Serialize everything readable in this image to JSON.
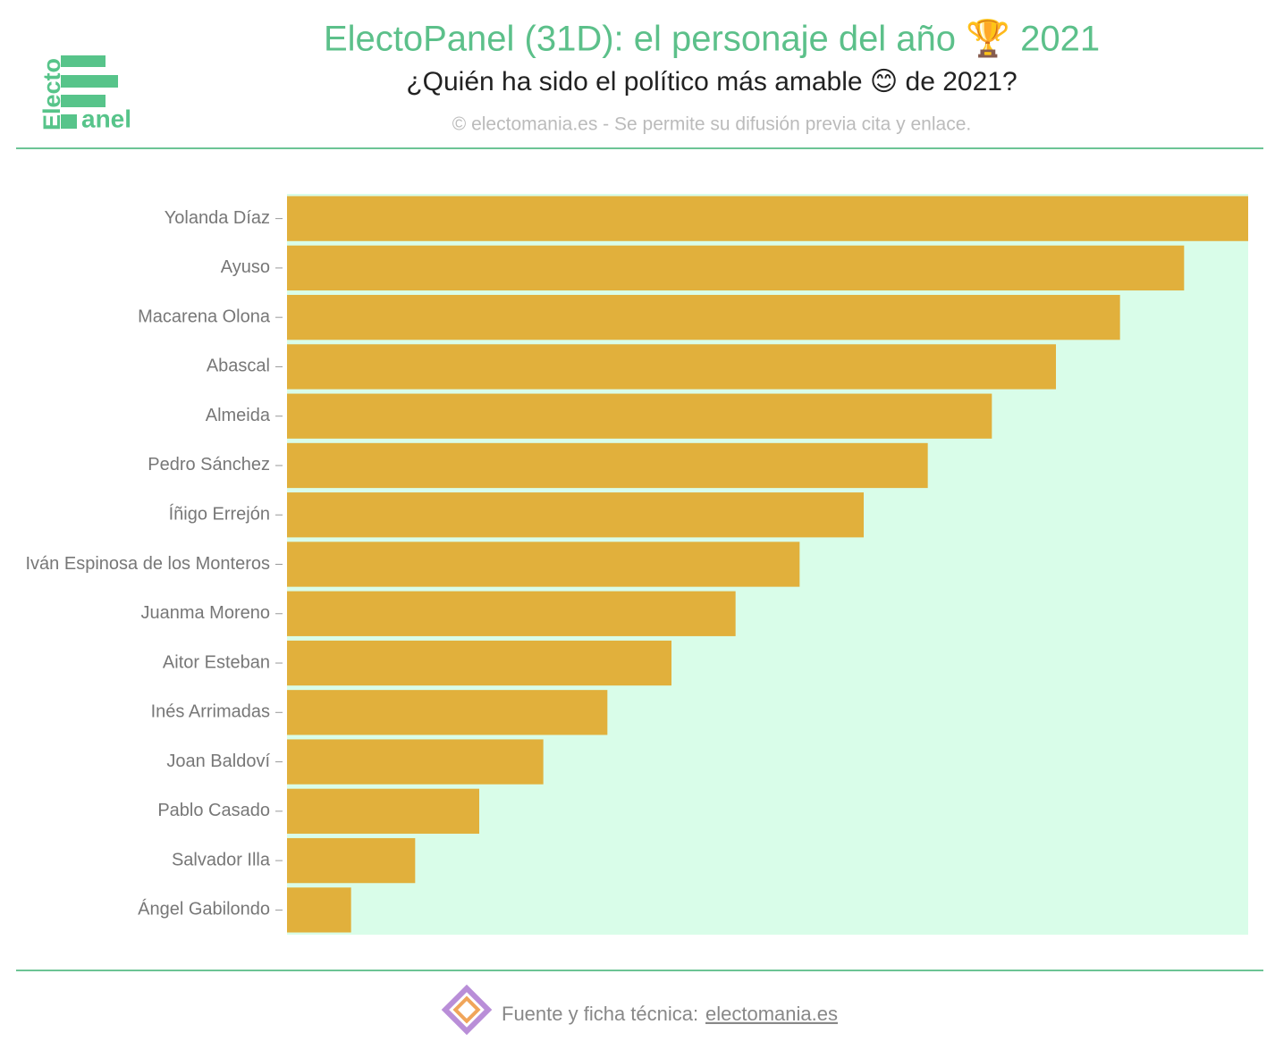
{
  "logo": {
    "top": "Electo",
    "bottom": "anel"
  },
  "chart_data": {
    "type": "bar",
    "orientation": "horizontal",
    "title": "ElectoPanel (31D): el personaje del año 🏆 2021",
    "subtitle": "¿Quién ha sido el político más amable 😊 de 2021?",
    "credit": "© electomania.es - Se permite su difusión previa cita y enlace.",
    "categories": [
      "Yolanda Díaz",
      "Ayuso",
      "Macarena Olona",
      "Abascal",
      "Almeida",
      "Pedro Sánchez",
      "Íñigo Errejón",
      "Iván Espinosa de los Monteros",
      "Juanma Moreno",
      "Aitor Esteban",
      "Inés Arrimadas",
      "Joan Baldoví",
      "Pablo Casado",
      "Salvador Illa",
      "Ángel Gabilondo"
    ],
    "values": [
      15,
      14,
      13,
      12,
      11,
      10,
      9,
      8,
      7,
      6,
      5,
      4,
      3,
      2,
      1
    ],
    "color": "#e1b03c",
    "background": "#d9fde9",
    "xlim": [
      0,
      15
    ]
  },
  "footer": {
    "text": "Fuente y ficha técnica:",
    "link": "electomania.es"
  }
}
